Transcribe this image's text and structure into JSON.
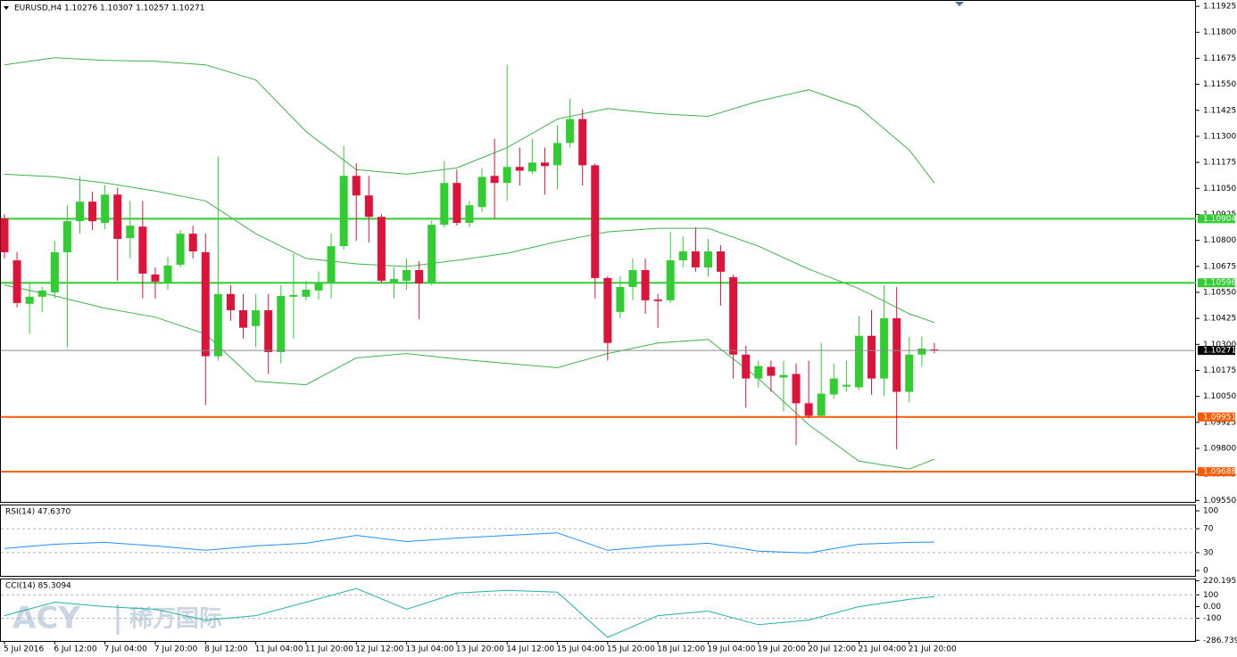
{
  "chart_data": [
    {
      "type": "candlestick",
      "title": "EURUSD,H4  1.10276 1.10307 1.10257 1.10271",
      "up_color": "#32cd32",
      "down_color": "#dc143c",
      "open": [
        1.10905,
        1.10704,
        1.10495,
        1.10529,
        1.1055,
        1.10743,
        1.10892,
        1.10986,
        1.10884,
        1.1102,
        1.10811,
        1.10866,
        1.10636,
        1.10593,
        1.10683,
        1.10832,
        1.10743,
        1.10243,
        1.10542,
        1.10464,
        1.10388,
        1.10464,
        1.10263,
        1.10529,
        1.10529,
        1.10559,
        1.10593,
        1.10772,
        1.1111,
        1.11016,
        1.10913,
        1.10597,
        1.10606,
        1.10657,
        1.10593,
        1.10875,
        1.11076,
        1.10884,
        1.1096,
        1.1111,
        1.11076,
        1.11153,
        1.11131,
        1.11174,
        1.11161,
        1.11268,
        1.11383,
        1.11161,
        1.10619,
        1.10456,
        1.10576,
        1.10657,
        1.10516,
        1.10512,
        1.10704,
        1.10747,
        1.1067,
        1.10747,
        1.10623,
        1.10251,
        1.10136,
        1.10192,
        1.10141,
        1.10158,
        1.10017,
        1.09957,
        1.10059,
        1.10097,
        1.10094,
        1.10341,
        1.10136,
        1.10426,
        1.10072,
        1.10251,
        1.10276
      ],
      "high": [
        1.10926,
        1.10743,
        1.10593,
        1.10576,
        1.10798,
        1.10969,
        1.1111,
        1.11033,
        1.11067,
        1.11054,
        1.1099,
        1.1099,
        1.1067,
        1.10721,
        1.10849,
        1.10871,
        1.10832,
        1.11204,
        1.10585,
        1.10542,
        1.10542,
        1.10542,
        1.10585,
        1.10734,
        1.10606,
        1.10649,
        1.10832,
        1.11255,
        1.1117,
        1.1111,
        1.10926,
        1.1067,
        1.10713,
        1.107,
        1.10896,
        1.11182,
        1.1114,
        1.1099,
        1.11148,
        1.11289,
        1.11644,
        1.11246,
        1.11289,
        1.11246,
        1.11353,
        1.11481,
        1.1143,
        1.1117,
        1.10627,
        1.10627,
        1.10713,
        1.10713,
        1.10542,
        1.10841,
        1.10819,
        1.10862,
        1.10807,
        1.10777,
        1.10636,
        1.10294,
        1.10222,
        1.10222,
        1.10222,
        1.10209,
        1.10222,
        1.10307,
        1.10209,
        1.10222,
        1.10435,
        1.10464,
        1.10585,
        1.10576,
        1.10337,
        1.10337,
        1.10307
      ],
      "low": [
        1.10713,
        1.10478,
        1.1035,
        1.10456,
        1.10521,
        1.10285,
        1.10832,
        1.10849,
        1.10854,
        1.10606,
        1.10713,
        1.10521,
        1.10521,
        1.10563,
        1.1067,
        1.10713,
        1.10008,
        1.10222,
        1.10414,
        1.10328,
        1.10285,
        1.10158,
        1.10209,
        1.10328,
        1.10512,
        1.10516,
        1.10521,
        1.10755,
        1.10798,
        1.1079,
        1.10593,
        1.10521,
        1.10563,
        1.10421,
        1.10585,
        1.10862,
        1.10871,
        1.10862,
        1.10935,
        1.10905,
        1.1099,
        1.11063,
        1.11118,
        1.1102,
        1.11046,
        1.11246,
        1.11063,
        1.10521,
        1.10222,
        1.10426,
        1.10512,
        1.10447,
        1.1038,
        1.10499,
        1.1067,
        1.10649,
        1.10627,
        1.10486,
        1.10136,
        1.09995,
        1.10094,
        1.10072,
        1.09978,
        1.09816,
        1.09944,
        1.09953,
        1.10038,
        1.10072,
        1.10081,
        1.10059,
        1.10051,
        1.09795,
        1.10021,
        1.10192,
        1.10257
      ],
      "close": [
        1.10743,
        1.10499,
        1.10529,
        1.10559,
        1.10743,
        1.10892,
        1.10986,
        1.10892,
        1.1102,
        1.10807,
        1.10871,
        1.1064,
        1.10602,
        1.10679,
        1.10832,
        1.10747,
        1.10243,
        1.10542,
        1.10464,
        1.1038,
        1.10464,
        1.10263,
        1.10533,
        1.10538,
        1.10563,
        1.10593,
        1.10772,
        1.1111,
        1.11016,
        1.10913,
        1.10606,
        1.10615,
        1.10657,
        1.10593,
        1.10875,
        1.11076,
        1.10884,
        1.10969,
        1.11105,
        1.11076,
        1.11153,
        1.11135,
        1.11174,
        1.11157,
        1.11268,
        1.11383,
        1.11161,
        1.10619,
        1.10307,
        1.10576,
        1.10657,
        1.10512,
        1.10508,
        1.10704,
        1.10747,
        1.1067,
        1.10747,
        1.10649,
        1.10251,
        1.10136,
        1.10196,
        1.10149,
        1.10153,
        1.10017,
        1.09957,
        1.10063,
        1.10136,
        1.10106,
        1.10341,
        1.10136,
        1.10426,
        1.10072,
        1.10251,
        1.1028,
        1.10271
      ],
      "band_x": [
        0,
        4,
        8,
        12,
        16,
        20,
        24,
        28,
        32,
        36,
        40,
        44,
        48,
        52,
        56,
        60,
        64,
        68,
        72,
        74
      ],
      "band_color": "#3cb44b",
      "bands": [
        {
          "values": [
            1.11644,
            1.11678,
            1.11665,
            1.11661,
            1.11644,
            1.11571,
            1.11323,
            1.1114,
            1.11118,
            1.11148,
            1.11246,
            1.11383,
            1.11434,
            1.11409,
            1.11396,
            1.11469,
            1.11524,
            1.11439,
            1.11234,
            1.11076
          ]
        },
        {
          "values": [
            1.11118,
            1.11105,
            1.11076,
            1.11037,
            1.1099,
            1.10832,
            1.10713,
            1.10687,
            1.10674,
            1.10704,
            1.10738,
            1.10794,
            1.10841,
            1.10858,
            1.10858,
            1.10772,
            1.10662,
            1.10568,
            1.10447,
            1.10405
          ]
        },
        {
          "values": [
            1.10585,
            1.10533,
            1.10474,
            1.10431,
            1.1035,
            1.10123,
            1.10106,
            1.10235,
            1.10256,
            1.1023,
            1.10209,
            1.10188,
            1.10256,
            1.10307,
            1.10324,
            1.10136,
            1.09914,
            1.09739,
            1.09701,
            1.09748
          ]
        }
      ],
      "levels": [
        {
          "value": 1.10904,
          "color": "#33cc33"
        },
        {
          "value": 1.10596,
          "color": "#33cc33"
        },
        {
          "value": 1.09951,
          "color": "#ff5a00"
        },
        {
          "value": 1.09688,
          "color": "#ff5a00"
        }
      ],
      "ylim": [
        1.09543,
        1.11951
      ],
      "yticks": [
        {
          "value": 1.11925,
          "label": "1.11925"
        },
        {
          "value": 1.118,
          "label": "1.11800"
        },
        {
          "value": 1.11675,
          "label": "1.11675"
        },
        {
          "value": 1.1155,
          "label": "1.11550"
        },
        {
          "value": 1.11425,
          "label": "1.11425"
        },
        {
          "value": 1.113,
          "label": "1.11300"
        },
        {
          "value": 1.11175,
          "label": "1.11175"
        },
        {
          "value": 1.1105,
          "label": "1.11050"
        },
        {
          "value": 1.10925,
          "label": "1.10925"
        },
        {
          "value": 1.108,
          "label": "1.10800"
        },
        {
          "value": 1.10675,
          "label": "1.10675"
        },
        {
          "value": 1.1055,
          "label": "1.10550"
        },
        {
          "value": 1.10425,
          "label": "1.10425"
        },
        {
          "value": 1.103,
          "label": "1.10300"
        },
        {
          "value": 1.10175,
          "label": "1.10175"
        },
        {
          "value": 1.1005,
          "label": "1.10050"
        },
        {
          "value": 1.09925,
          "label": "1.09925"
        },
        {
          "value": 1.098,
          "label": "1.09800"
        },
        {
          "value": 1.09675,
          "label": "1.09675"
        },
        {
          "value": 1.0955,
          "label": "1.09550"
        }
      ],
      "time_labels": [
        "5 Jul 2016",
        "6 Jul 12:00",
        "7 Jul 04:00",
        "7 Jul 20:00",
        "8 Jul 12:00",
        "11 Jul 04:00",
        "11 Jul 20:00",
        "12 Jul 12:00",
        "13 Jul 04:00",
        "13 Jul 20:00",
        "14 Jul 12:00",
        "15 Jul 04:00",
        "15 Jul 20:00",
        "18 Jul 12:00",
        "19 Jul 04:00",
        "19 Jul 20:00",
        "20 Jul 12:00",
        "21 Jul 04:00",
        "21 Jul 20:00"
      ],
      "watermark": [
        "ACY",
        "稀万国际"
      ]
    },
    {
      "type": "line",
      "title": "RSI(14) 47.6370",
      "color": "#1e90ff",
      "x": [
        0,
        4,
        8,
        12,
        16,
        20,
        24,
        28,
        32,
        36,
        40,
        44,
        48,
        52,
        56,
        60,
        64,
        68,
        72,
        74
      ],
      "values": [
        36.8,
        44.1,
        47.1,
        41.2,
        33.8,
        41.2,
        45.6,
        58.8,
        48.5,
        54.4,
        58.8,
        63.2,
        33.8,
        41.2,
        45.6,
        32.4,
        29.4,
        44.1,
        47.1,
        47.637
      ],
      "ylim": [
        -9,
        109
      ],
      "yticks": [
        100,
        70,
        30,
        0
      ],
      "levels": [
        70,
        30
      ]
    },
    {
      "type": "line",
      "title": "CCI(14) 85.3094",
      "color": "#20b2aa",
      "x": [
        0,
        4,
        8,
        12,
        16,
        20,
        24,
        28,
        32,
        36,
        40,
        44,
        48,
        52,
        56,
        60,
        64,
        68,
        72,
        74
      ],
      "values": [
        -77,
        38,
        0,
        -23,
        -115,
        -77,
        38,
        154,
        -23,
        115,
        138,
        123,
        -262,
        -77,
        -38,
        -154,
        -115,
        0,
        62,
        85.3094
      ],
      "ylim": [
        -292,
        231
      ],
      "yticks": [
        220.1955,
        100,
        {
          "value": 0,
          "label": "0.00"
        },
        -100,
        -286.7395
      ],
      "levels": [
        100,
        -100
      ]
    }
  ]
}
